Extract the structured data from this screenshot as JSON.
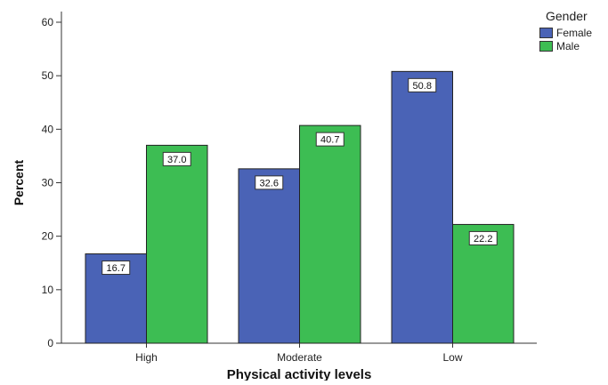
{
  "chart_data": {
    "type": "bar",
    "categories": [
      "High",
      "Moderate",
      "Low"
    ],
    "series": [
      {
        "name": "Female",
        "values": [
          16.7,
          32.6,
          50.8
        ],
        "labels": [
          "16.7",
          "32.6",
          "50.8"
        ],
        "color": "#4a63b6"
      },
      {
        "name": "Male",
        "values": [
          37.0,
          40.7,
          22.2
        ],
        "labels": [
          "37.0",
          "40.7",
          "22.2"
        ],
        "color": "#3dbd53"
      }
    ],
    "xlabel": "Physical activity levels",
    "ylabel": "Percent",
    "ylim": [
      0,
      60
    ],
    "yticks": [
      0,
      10,
      20,
      30,
      40,
      50,
      60
    ],
    "legend_title": "Gender",
    "legend_position": "top-right",
    "grid": false
  }
}
